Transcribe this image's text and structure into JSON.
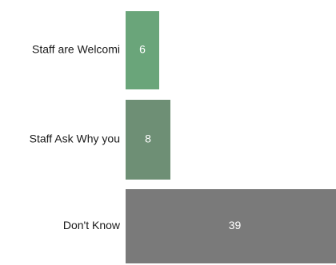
{
  "chart_data": {
    "type": "bar",
    "orientation": "horizontal",
    "categories": [
      "Staff are Welcomi",
      "Staff Ask Why you",
      "Don't Know"
    ],
    "values": [
      6,
      8,
      39
    ],
    "colors": [
      "#6aa57a",
      "#6e8f75",
      "#7a7a7a"
    ],
    "value_label_color": "#ffffff",
    "grid": false,
    "legend": "none"
  }
}
